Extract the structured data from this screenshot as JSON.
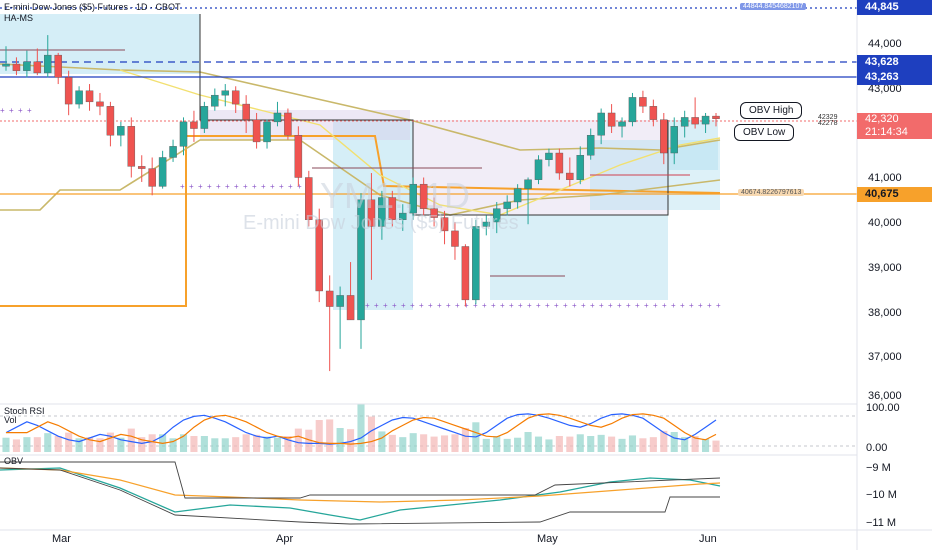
{
  "header": {
    "symbol_line": "E-mini Dow Jones ($5) Futures · 1D · CBOT",
    "indicator": "HA-MS",
    "watermark_big": "YM1!, 1D",
    "watermark_small": "E-mini Dow Jones ($5) Futures"
  },
  "price_axis": {
    "ticks": [
      "44,000",
      "43,000",
      "41,000",
      "40,000",
      "39,000",
      "38,000",
      "37,000",
      "36,000"
    ],
    "current_price": "42,320",
    "countdown": "21:14:34"
  },
  "levels": [
    {
      "label": "44,845",
      "color": "#1e3fbf",
      "style": "dotted"
    },
    {
      "label": "43,628",
      "color": "#1e3fbf",
      "style": "dashed"
    },
    {
      "label": "43,263",
      "color": "#1e3fbf",
      "style": "solid"
    },
    {
      "label": "40,675",
      "color": "#f7a12b",
      "style": "solid"
    }
  ],
  "level_notes": {
    "top": "44844.8454682107",
    "obv_level": "40674.8226797613",
    "small_a": "42329",
    "small_b": "42278"
  },
  "annotations": {
    "obv_high": "OBV High",
    "obv_low": "OBV Low"
  },
  "pane_stoch": {
    "title": "Stoch RSI",
    "vol_label": "Vol",
    "ticks": [
      "100.00",
      "0.00"
    ]
  },
  "pane_obv": {
    "title": "OBV",
    "ticks": [
      "−9 M",
      "−10 M",
      "−11 M"
    ]
  },
  "time_axis": {
    "labels": [
      "Mar",
      "Apr",
      "May",
      "Jun"
    ]
  },
  "colors": {
    "up": "#26a69a",
    "down": "#ef5350",
    "accent": "#2962ff",
    "level_orange": "#f7a12b"
  },
  "chart_data": {
    "type": "candlestick",
    "timeframe": "1D",
    "ylim": [
      36000,
      45000
    ],
    "candles": [
      {
        "o": 43500,
        "h": 43950,
        "l": 43400,
        "c": 43550
      },
      {
        "o": 43550,
        "h": 43700,
        "l": 43300,
        "c": 43400
      },
      {
        "o": 43400,
        "h": 43850,
        "l": 43250,
        "c": 43600
      },
      {
        "o": 43600,
        "h": 43900,
        "l": 43300,
        "c": 43350
      },
      {
        "o": 43350,
        "h": 44200,
        "l": 43250,
        "c": 43750
      },
      {
        "o": 43750,
        "h": 43800,
        "l": 43100,
        "c": 43250
      },
      {
        "o": 43250,
        "h": 43400,
        "l": 42400,
        "c": 42650
      },
      {
        "o": 42650,
        "h": 43050,
        "l": 42550,
        "c": 42950
      },
      {
        "o": 42950,
        "h": 43100,
        "l": 42500,
        "c": 42700
      },
      {
        "o": 42700,
        "h": 42900,
        "l": 42400,
        "c": 42600
      },
      {
        "o": 42600,
        "h": 42700,
        "l": 41700,
        "c": 41950
      },
      {
        "o": 41950,
        "h": 42250,
        "l": 41700,
        "c": 42150
      },
      {
        "o": 42150,
        "h": 42350,
        "l": 41000,
        "c": 41250
      },
      {
        "o": 41250,
        "h": 41500,
        "l": 40900,
        "c": 41200
      },
      {
        "o": 41200,
        "h": 41450,
        "l": 40600,
        "c": 40800
      },
      {
        "o": 40800,
        "h": 41600,
        "l": 40750,
        "c": 41450
      },
      {
        "o": 41450,
        "h": 41850,
        "l": 41350,
        "c": 41700
      },
      {
        "o": 41700,
        "h": 42350,
        "l": 41500,
        "c": 42250
      },
      {
        "o": 42250,
        "h": 42500,
        "l": 41800,
        "c": 42100
      },
      {
        "o": 42100,
        "h": 42700,
        "l": 42000,
        "c": 42600
      },
      {
        "o": 42600,
        "h": 43000,
        "l": 42500,
        "c": 42850
      },
      {
        "o": 42850,
        "h": 43100,
        "l": 42600,
        "c": 42950
      },
      {
        "o": 42950,
        "h": 43050,
        "l": 42450,
        "c": 42650
      },
      {
        "o": 42650,
        "h": 42850,
        "l": 42000,
        "c": 42300
      },
      {
        "o": 42300,
        "h": 42450,
        "l": 41650,
        "c": 41800
      },
      {
        "o": 41800,
        "h": 42300,
        "l": 41650,
        "c": 42250
      },
      {
        "o": 42250,
        "h": 42700,
        "l": 42150,
        "c": 42450
      },
      {
        "o": 42450,
        "h": 42550,
        "l": 41850,
        "c": 41950
      },
      {
        "o": 41950,
        "h": 42150,
        "l": 40800,
        "c": 41000
      },
      {
        "o": 41000,
        "h": 41150,
        "l": 39900,
        "c": 40050
      },
      {
        "o": 40050,
        "h": 40300,
        "l": 38200,
        "c": 38450
      },
      {
        "o": 38450,
        "h": 38800,
        "l": 36650,
        "c": 38100
      },
      {
        "o": 38100,
        "h": 38550,
        "l": 37150,
        "c": 38350
      },
      {
        "o": 38350,
        "h": 39100,
        "l": 37800,
        "c": 37800
      },
      {
        "o": 37800,
        "h": 40650,
        "l": 37150,
        "c": 40500
      },
      {
        "o": 40500,
        "h": 41100,
        "l": 38700,
        "c": 39900
      },
      {
        "o": 39900,
        "h": 40700,
        "l": 39600,
        "c": 40550
      },
      {
        "o": 40550,
        "h": 40700,
        "l": 39900,
        "c": 40050
      },
      {
        "o": 40050,
        "h": 40400,
        "l": 39800,
        "c": 40200
      },
      {
        "o": 40200,
        "h": 41000,
        "l": 40050,
        "c": 40850
      },
      {
        "o": 40850,
        "h": 41000,
        "l": 40150,
        "c": 40300
      },
      {
        "o": 40300,
        "h": 40550,
        "l": 39900,
        "c": 40100
      },
      {
        "o": 40100,
        "h": 40250,
        "l": 39500,
        "c": 39800
      },
      {
        "o": 39800,
        "h": 40000,
        "l": 39150,
        "c": 39450
      },
      {
        "o": 39450,
        "h": 39500,
        "l": 38100,
        "c": 38250
      },
      {
        "o": 38250,
        "h": 40050,
        "l": 38150,
        "c": 39900
      },
      {
        "o": 39900,
        "h": 40150,
        "l": 39700,
        "c": 40000
      },
      {
        "o": 40000,
        "h": 40450,
        "l": 39750,
        "c": 40300
      },
      {
        "o": 40300,
        "h": 40600,
        "l": 40150,
        "c": 40450
      },
      {
        "o": 40450,
        "h": 40850,
        "l": 40300,
        "c": 40750
      },
      {
        "o": 40750,
        "h": 41000,
        "l": 39950,
        "c": 40950
      },
      {
        "o": 40950,
        "h": 41500,
        "l": 40850,
        "c": 41400
      },
      {
        "o": 41400,
        "h": 41650,
        "l": 41250,
        "c": 41550
      },
      {
        "o": 41550,
        "h": 41650,
        "l": 40950,
        "c": 41100
      },
      {
        "o": 41100,
        "h": 41450,
        "l": 40800,
        "c": 40950
      },
      {
        "o": 40950,
        "h": 41700,
        "l": 40850,
        "c": 41500
      },
      {
        "o": 41500,
        "h": 42100,
        "l": 41400,
        "c": 41950
      },
      {
        "o": 41950,
        "h": 42550,
        "l": 41750,
        "c": 42450
      },
      {
        "o": 42450,
        "h": 42650,
        "l": 42000,
        "c": 42150
      },
      {
        "o": 42150,
        "h": 42350,
        "l": 41900,
        "c": 42250
      },
      {
        "o": 42250,
        "h": 42900,
        "l": 42150,
        "c": 42800
      },
      {
        "o": 42800,
        "h": 42950,
        "l": 42450,
        "c": 42600
      },
      {
        "o": 42600,
        "h": 42750,
        "l": 42150,
        "c": 42300
      },
      {
        "o": 42300,
        "h": 42450,
        "l": 41300,
        "c": 41550
      },
      {
        "o": 41550,
        "h": 42350,
        "l": 41300,
        "c": 42150
      },
      {
        "o": 42150,
        "h": 42500,
        "l": 41900,
        "c": 42350
      },
      {
        "o": 42350,
        "h": 42800,
        "l": 42100,
        "c": 42200
      },
      {
        "o": 42200,
        "h": 42450,
        "l": 42000,
        "c": 42380
      },
      {
        "o": 42380,
        "h": 42450,
        "l": 42150,
        "c": 42320
      }
    ]
  }
}
